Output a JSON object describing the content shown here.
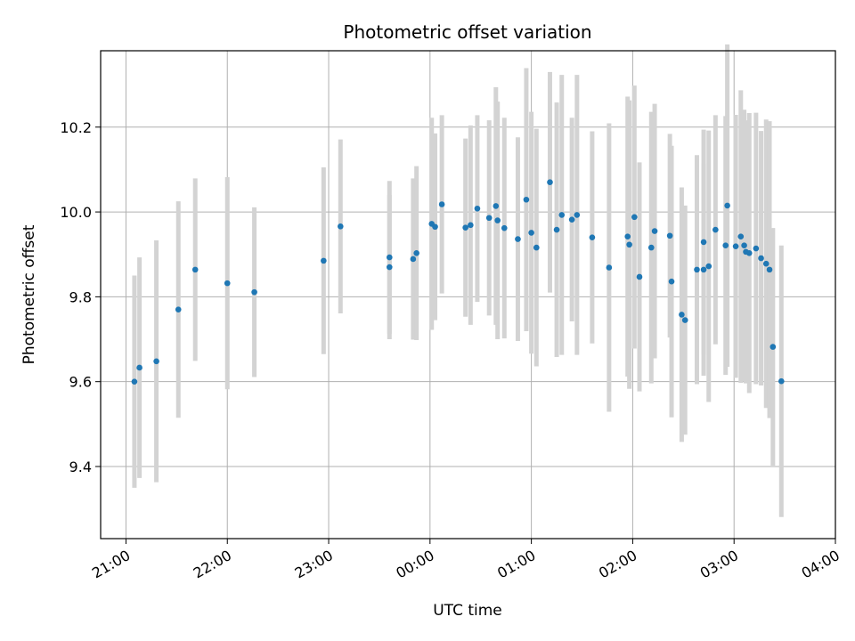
{
  "chart_data": {
    "type": "scatter",
    "title": "Photometric offset variation",
    "xlabel": "UTC time",
    "ylabel": "Photometric offset",
    "grid": true,
    "x_ticks": [
      "21:00",
      "22:00",
      "23:00",
      "00:00",
      "01:00",
      "02:00",
      "03:00",
      "04:00"
    ],
    "y_ticks": [
      9.4,
      9.6,
      9.8,
      10.0,
      10.2
    ],
    "xlim": [
      -15,
      420
    ],
    "ylim": [
      9.23,
      10.38
    ],
    "colors": {
      "marker": "#1f77b4",
      "errorbar": "#d3d3d3",
      "grid": "#b0b0b0"
    },
    "series": [
      {
        "x": [
          5,
          8,
          18,
          31,
          41,
          60,
          76,
          117,
          127,
          156,
          156,
          170,
          172,
          181,
          183,
          187,
          201,
          204,
          208,
          215,
          219,
          220,
          224,
          232,
          237,
          240,
          243,
          251,
          255,
          258,
          264,
          267,
          276,
          286,
          297,
          298,
          301,
          304,
          311,
          313,
          322,
          323,
          329,
          331,
          338,
          342,
          345,
          349,
          355,
          356,
          361
        ],
        "y": [
          9.6,
          9.633,
          9.648,
          9.77,
          9.864,
          9.832,
          9.811,
          9.885,
          9.966,
          9.893,
          9.87,
          9.889,
          9.903,
          9.972,
          9.965,
          10.018,
          9.963,
          9.969,
          10.008,
          9.986,
          10.014,
          9.98,
          9.962,
          9.936,
          10.029,
          9.951,
          9.916,
          10.07,
          9.958,
          9.993,
          9.982,
          9.993,
          9.94,
          9.869,
          9.942,
          9.923,
          9.988,
          9.847,
          9.916,
          9.955,
          9.944,
          9.836,
          9.758,
          9.745,
          9.864,
          9.929,
          9.872,
          9.958,
          9.921,
          10.015,
          9.919
        ],
        "yerr": [
          0.25,
          0.26,
          0.285,
          0.255,
          0.215,
          0.25,
          0.2,
          0.22,
          0.205,
          0.18,
          0.17,
          0.19,
          0.205,
          0.25,
          0.22,
          0.21,
          0.21,
          0.235,
          0.22,
          0.23,
          0.28,
          0.28,
          0.26,
          0.24,
          0.31,
          0.285,
          0.28,
          0.26,
          0.3,
          0.33,
          0.24,
          0.33,
          0.25,
          0.34,
          0.33,
          0.34,
          0.31,
          0.27,
          0.32,
          0.3,
          0.24,
          0.32,
          0.3,
          0.27,
          0.27,
          0.265,
          0.32,
          0.27,
          0.305,
          0.38,
          0.31
        ]
      },
      {
        "x": [
          342,
          364,
          366,
          367,
          369,
          373,
          376,
          379,
          381,
          383,
          388
        ],
        "y": [
          9.864,
          9.942,
          9.921,
          9.906,
          9.903,
          9.914,
          9.891,
          9.878,
          9.864,
          9.682,
          9.601
        ],
        "yerr": [
          0.25,
          0.345,
          0.32,
          0.31,
          0.33,
          0.32,
          0.3,
          0.34,
          0.35,
          0.28,
          0.32
        ]
      }
    ]
  }
}
